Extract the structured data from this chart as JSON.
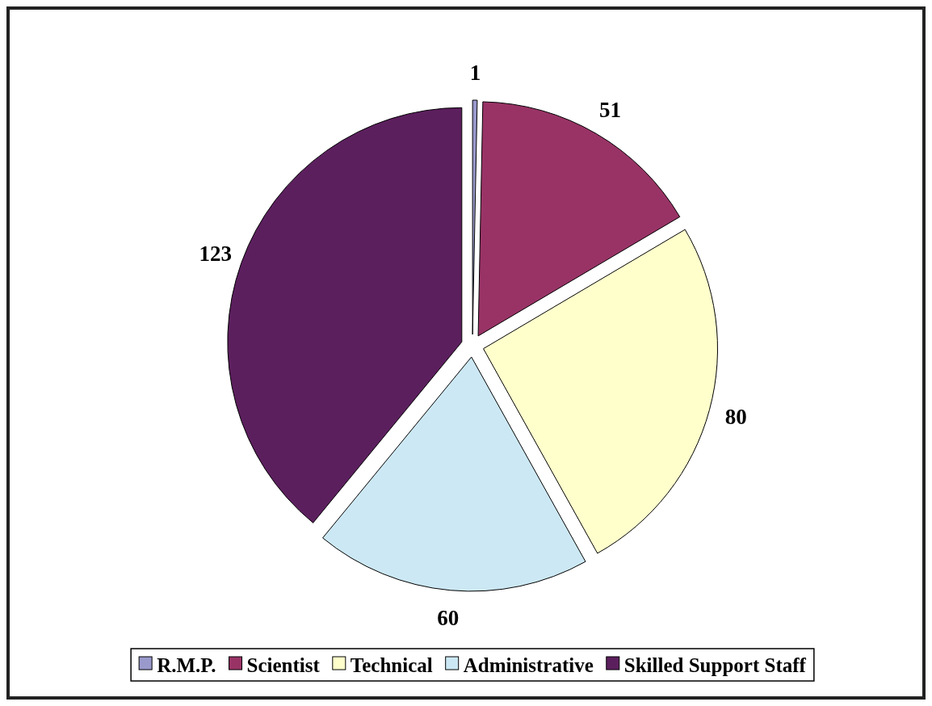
{
  "chart_data": {
    "type": "pie",
    "categories": [
      "R.M.P.",
      "Scientist",
      "Technical",
      "Administrative",
      "Skilled Support Staff"
    ],
    "values": [
      1,
      51,
      80,
      60,
      123
    ],
    "colors": [
      "#9999cc",
      "#993366",
      "#ffffcc",
      "#cce8f4",
      "#5c1f5e"
    ],
    "data_labels": true,
    "legend": "bottom"
  }
}
